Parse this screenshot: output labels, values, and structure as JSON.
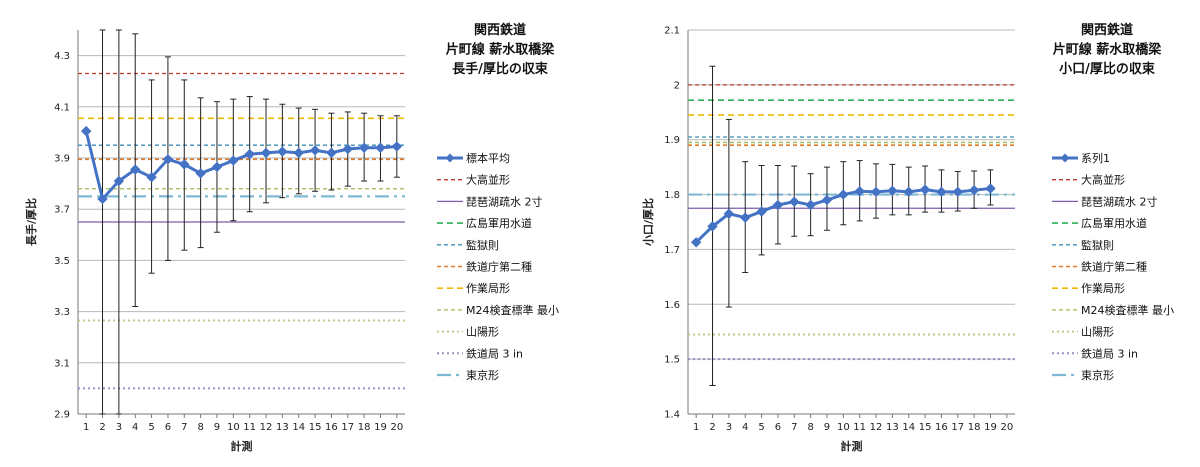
{
  "chart_data": [
    {
      "type": "line",
      "title": [
        "関西鉄道",
        "片町線 薪水取橋梁",
        "長手/厚比の収束"
      ],
      "xlabel": "計測",
      "ylabel": "長手/厚比",
      "x": [
        1,
        2,
        3,
        4,
        5,
        6,
        7,
        8,
        9,
        10,
        11,
        12,
        13,
        14,
        15,
        16,
        17,
        18,
        19,
        20
      ],
      "xlim": [
        1,
        20
      ],
      "ylim": [
        2.9,
        4.4
      ],
      "yticks": [
        2.9,
        3.1,
        3.3,
        3.5,
        3.7,
        3.9,
        4.1,
        4.3
      ],
      "ytick_labels": [
        "2.9",
        "3.1",
        "3.3",
        "3.5",
        "3.7",
        "3.9",
        "4.1",
        "4.3"
      ],
      "grid": "horizontal",
      "legend_position": "right",
      "series": [
        {
          "name": "標本平均",
          "kind": "mean",
          "color": "#4472C4",
          "values": [
            4.005,
            3.74,
            3.81,
            3.855,
            3.825,
            3.895,
            3.875,
            3.84,
            3.865,
            3.89,
            3.915,
            3.92,
            3.925,
            3.92,
            3.93,
            3.92,
            3.935,
            3.94,
            3.94,
            3.945
          ],
          "err_low": [
            null,
            2.9,
            2.9,
            3.32,
            3.45,
            3.5,
            3.54,
            3.55,
            3.61,
            3.655,
            3.69,
            3.725,
            3.745,
            3.76,
            3.77,
            3.775,
            3.79,
            3.81,
            3.81,
            3.825
          ],
          "err_high": [
            null,
            4.4,
            4.4,
            4.385,
            4.205,
            4.295,
            4.205,
            4.135,
            4.12,
            4.13,
            4.14,
            4.13,
            4.11,
            4.095,
            4.09,
            4.075,
            4.08,
            4.075,
            4.065,
            4.065
          ]
        },
        {
          "name": "大高並形",
          "kind": "ref",
          "value": 4.23,
          "color": "#C0392B",
          "dash": "4,3",
          "width": 1.3
        },
        {
          "name": "琵琶湖疏水 2寸",
          "kind": "ref",
          "value": 3.65,
          "color": "#7B5EA7",
          "dash": "",
          "width": 1.3
        },
        {
          "name": "広島軍用水道",
          "kind": "ref",
          "value": null,
          "color": "#2EAD5B",
          "dash": "6,4",
          "width": 1.6
        },
        {
          "name": "監獄則",
          "kind": "ref",
          "value": 3.95,
          "color": "#3A8FB7",
          "dash": "4,3",
          "width": 1.3
        },
        {
          "name": "鉄道庁第二種",
          "kind": "ref",
          "value": 3.895,
          "color": "#E07B2A",
          "dash": "4,3",
          "width": 1.6
        },
        {
          "name": "作業局形",
          "kind": "ref",
          "value": 4.055,
          "color": "#F2B705",
          "dash": "6,4",
          "width": 1.6
        },
        {
          "name": "M24検査標準 最小",
          "kind": "ref",
          "value": 3.78,
          "color": "#9BBB59",
          "dash": "4,3",
          "width": 1.3
        },
        {
          "name": "山陽形",
          "kind": "ref",
          "value": 3.265,
          "color": "#C3C88A",
          "dash": "2,3",
          "width": 2
        },
        {
          "name": "鉄道局 3 in",
          "kind": "ref",
          "value": 3.0,
          "color": "#9B8FC7",
          "dash": "2,3",
          "width": 2
        },
        {
          "name": "東京形",
          "kind": "ref",
          "value": 3.75,
          "color": "#7FB8D6",
          "dash": "14,5,3,5",
          "width": 2.2
        }
      ]
    },
    {
      "type": "line",
      "title": [
        "関西鉄道",
        "片町線 薪水取橋梁",
        "小口/厚比の収束"
      ],
      "xlabel": "計測",
      "ylabel": "小口/厚比",
      "x": [
        1,
        2,
        3,
        4,
        5,
        6,
        7,
        8,
        9,
        10,
        11,
        12,
        13,
        14,
        15,
        16,
        17,
        18,
        19,
        20
      ],
      "xlim": [
        1,
        20
      ],
      "ylim": [
        1.4,
        2.1
      ],
      "yticks": [
        1.4,
        1.5,
        1.6,
        1.7,
        1.8,
        1.9,
        2.0,
        2.1
      ],
      "ytick_labels": [
        "1.4",
        "1.5",
        "1.6",
        "1.7",
        "1.8",
        "1.9",
        "2",
        "2.1"
      ],
      "grid": "horizontal",
      "legend_position": "right",
      "series": [
        {
          "name": "系列1",
          "kind": "mean",
          "color": "#4472C4",
          "values": [
            1.713,
            1.742,
            1.765,
            1.758,
            1.769,
            1.781,
            1.787,
            1.781,
            1.79,
            1.8,
            1.806,
            1.805,
            1.807,
            1.805,
            1.809,
            1.805,
            1.805,
            1.808,
            1.811,
            null
          ],
          "err_low": [
            null,
            1.452,
            1.595,
            1.658,
            1.69,
            1.71,
            1.724,
            1.725,
            1.735,
            1.745,
            1.752,
            1.757,
            1.763,
            1.763,
            1.768,
            1.768,
            1.77,
            1.775,
            1.781,
            null
          ],
          "err_high": [
            null,
            2.034,
            1.937,
            1.86,
            1.853,
            1.853,
            1.852,
            1.838,
            1.85,
            1.86,
            1.862,
            1.856,
            1.855,
            1.85,
            1.852,
            1.845,
            1.842,
            1.843,
            1.845,
            null
          ]
        },
        {
          "name": "大高並形",
          "kind": "ref",
          "value": 2.0,
          "color": "#C0392B",
          "dash": "4,3",
          "width": 1.3
        },
        {
          "name": "琵琶湖疏水 2寸",
          "kind": "ref",
          "value": 1.775,
          "color": "#7B5EA7",
          "dash": "",
          "width": 1.3
        },
        {
          "name": "広島軍用水道",
          "kind": "ref",
          "value": 1.972,
          "color": "#2EAD5B",
          "dash": "6,4",
          "width": 1.6
        },
        {
          "name": "監獄則",
          "kind": "ref",
          "value": 1.905,
          "color": "#3A8FB7",
          "dash": "4,3",
          "width": 1.3
        },
        {
          "name": "鉄道庁第二種",
          "kind": "ref",
          "value": 1.89,
          "color": "#E07B2A",
          "dash": "4,3",
          "width": 1.6
        },
        {
          "name": "作業局形",
          "kind": "ref",
          "value": 1.945,
          "color": "#F2B705",
          "dash": "6,4",
          "width": 1.6
        },
        {
          "name": "M24検査標準 最小",
          "kind": "ref",
          "value": 1.895,
          "color": "#9BBB59",
          "dash": "4,3",
          "width": 1.3
        },
        {
          "name": "山陽形",
          "kind": "ref",
          "value": 1.545,
          "color": "#C3C88A",
          "dash": "2,3",
          "width": 2
        },
        {
          "name": "鉄道局 3 in",
          "kind": "ref",
          "value": 1.5,
          "color": "#9B8FC7",
          "dash": "2,3",
          "width": 2
        },
        {
          "name": "東京形",
          "kind": "ref",
          "value": 1.8,
          "color": "#7FB8D6",
          "dash": "14,5,3,5",
          "width": 2.2
        }
      ]
    }
  ]
}
